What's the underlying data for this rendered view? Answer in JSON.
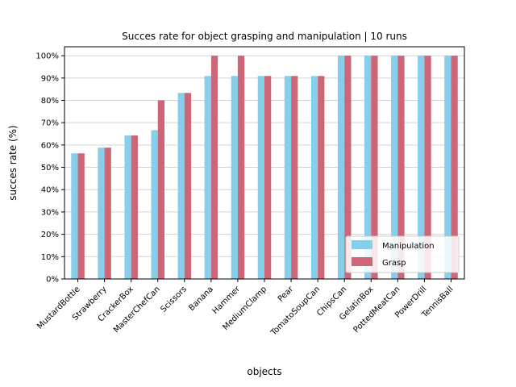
{
  "chart_data": {
    "type": "bar",
    "title": "Succes rate for object grasping and manipulation | 10 runs",
    "xlabel": "objects",
    "ylabel": "succes rate (%)",
    "ylim": [
      0,
      1.04
    ],
    "yticks": [
      0,
      0.1,
      0.2,
      0.3,
      0.4,
      0.5,
      0.6,
      0.7,
      0.8,
      0.9,
      1.0
    ],
    "ytick_labels": [
      "0%",
      "10%",
      "20%",
      "30%",
      "40%",
      "50%",
      "60%",
      "70%",
      "80%",
      "90%",
      "100%"
    ],
    "grid": "horizontal",
    "legend_position": "bottom-right",
    "categories": [
      "MustardBottle",
      "Strawberry",
      "CrackerBox",
      "MasterChefCan",
      "Scissors",
      "Banana",
      "Hammer",
      "MediumClamp",
      "Pear",
      "TomatoSoupCan",
      "ChipsCan",
      "GelatinBox",
      "PottedMeatCan",
      "PowerDrill",
      "TennisBall"
    ],
    "series": [
      {
        "name": "Manipulation",
        "color": "#87CEEB",
        "values": [
          0.5625,
          0.5882,
          0.6429,
          0.6667,
          0.8333,
          0.9091,
          0.9091,
          0.9091,
          0.9091,
          0.9091,
          1.0,
          1.0,
          1.0,
          1.0,
          1.0
        ]
      },
      {
        "name": "Grasp",
        "color": "#CD6677",
        "values": [
          0.5625,
          0.5882,
          0.6429,
          0.8,
          0.8333,
          1.0,
          1.0,
          0.9091,
          0.9091,
          0.9091,
          1.0,
          1.0,
          1.0,
          1.0,
          1.0
        ]
      }
    ]
  }
}
